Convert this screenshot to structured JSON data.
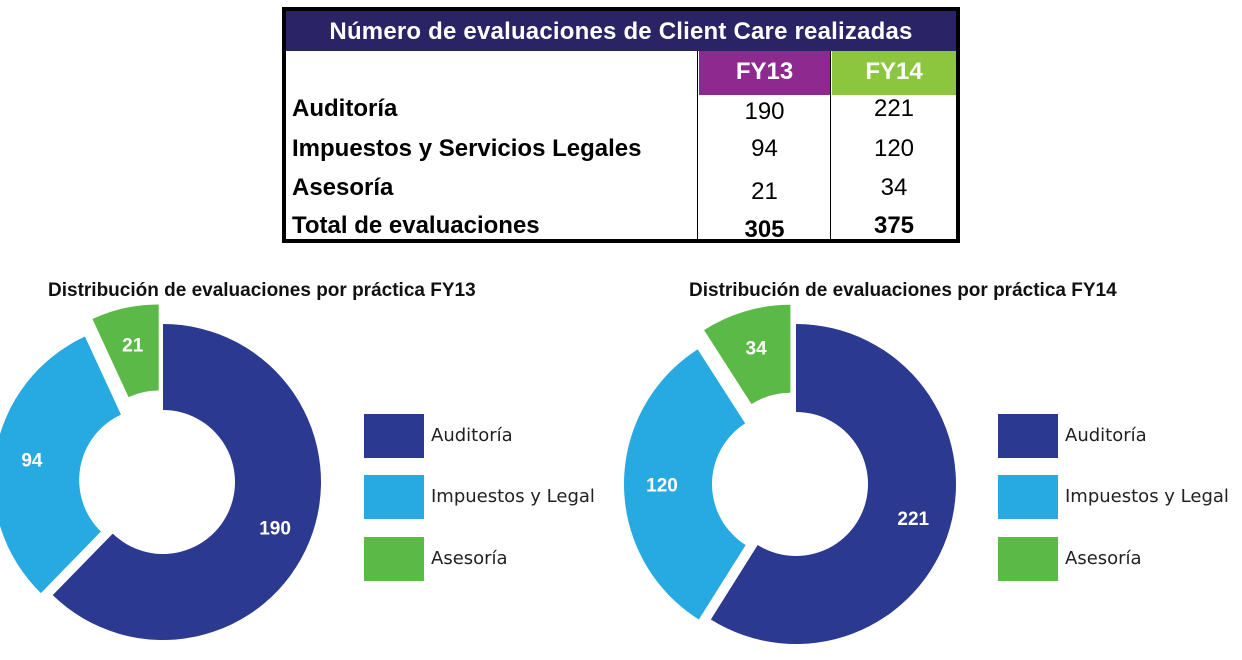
{
  "table": {
    "title": "Número de evaluaciones de Client Care realizadas",
    "columns": [
      {
        "label": "FY13",
        "color": "#8e2a8f"
      },
      {
        "label": "FY14",
        "color": "#8cc63f"
      }
    ],
    "rows": [
      {
        "label": "Auditoría",
        "fy13": "190",
        "fy14": "221"
      },
      {
        "label": "Impuestos y Servicios Legales",
        "fy13": "94",
        "fy14": "120"
      },
      {
        "label": "Asesoría",
        "fy13": "21",
        "fy14": "34"
      },
      {
        "label": "Total de evaluaciones",
        "fy13": "305",
        "fy14": "375"
      }
    ]
  },
  "chart_data": [
    {
      "type": "pie",
      "title": "Distribución de evaluaciones por práctica FY13",
      "categories": [
        "Auditoría",
        "Impuestos y Legal",
        "Asesoría"
      ],
      "values": [
        190,
        94,
        21
      ],
      "colors": [
        "#2b3990",
        "#27aae1",
        "#5bb947"
      ],
      "legend": "right"
    },
    {
      "type": "pie",
      "title": "Distribución de evaluaciones por práctica FY14",
      "categories": [
        "Auditoría",
        "Impuestos y Legal",
        "Asesoría"
      ],
      "values": [
        221,
        120,
        34
      ],
      "colors": [
        "#2b3990",
        "#27aae1",
        "#5bb947"
      ],
      "legend": "right"
    }
  ]
}
